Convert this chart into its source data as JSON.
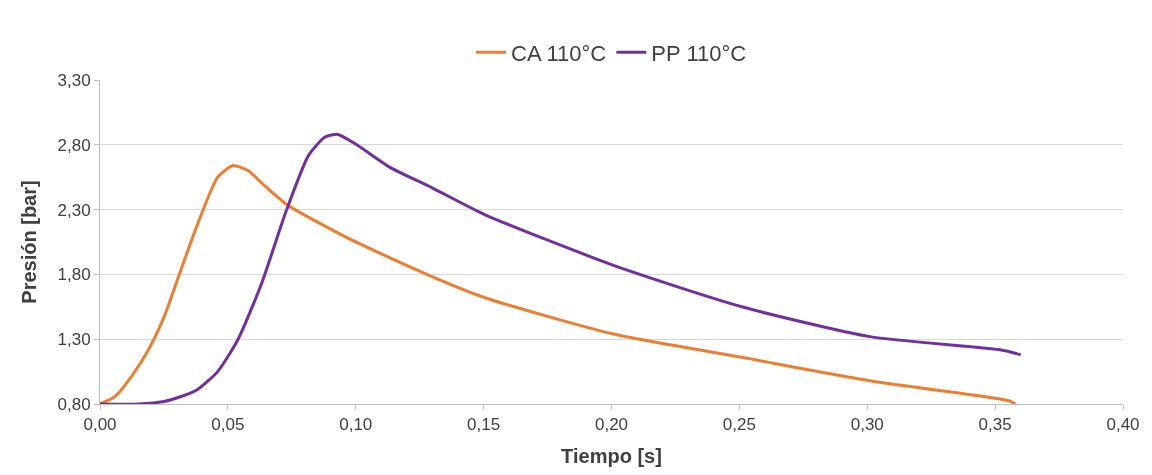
{
  "chart_data": {
    "type": "line",
    "xlabel": "Tiempo [s]",
    "ylabel": "Presión [bar]",
    "xlim": [
      0,
      0.4
    ],
    "ylim": [
      0.8,
      3.3
    ],
    "xticks": [
      {
        "value": 0,
        "label": "0,00"
      },
      {
        "value": 0.05,
        "label": "0,05"
      },
      {
        "value": 0.1,
        "label": "0,10"
      },
      {
        "value": 0.15,
        "label": "0,15"
      },
      {
        "value": 0.2,
        "label": "0,20"
      },
      {
        "value": 0.25,
        "label": "0,25"
      },
      {
        "value": 0.3,
        "label": "0,30"
      },
      {
        "value": 0.35,
        "label": "0,35"
      },
      {
        "value": 0.4,
        "label": "0,40"
      }
    ],
    "yticks": [
      {
        "value": 0.8,
        "label": "0,80"
      },
      {
        "value": 1.3,
        "label": "1,30"
      },
      {
        "value": 1.8,
        "label": "1,80"
      },
      {
        "value": 2.3,
        "label": "2,30"
      },
      {
        "value": 2.8,
        "label": "2,80"
      },
      {
        "value": 3.3,
        "label": "3,30"
      }
    ],
    "grid": "y",
    "legend": "top",
    "marker": "none",
    "line_style": "solid",
    "series": [
      {
        "name": "CA 110°C",
        "color": "#ed7d31",
        "x": [
          0,
          0.006,
          0.0126,
          0.019,
          0.025,
          0.031,
          0.038,
          0.046,
          0.052,
          0.058,
          0.063,
          0.073,
          0.096,
          0.1255,
          0.1506,
          0.2008,
          0.251,
          0.301,
          0.3515,
          0.356,
          0.358
        ],
        "values": [
          0.8,
          0.86,
          1.02,
          1.22,
          1.47,
          1.8,
          2.18,
          2.55,
          2.64,
          2.6,
          2.51,
          2.34,
          2.09,
          1.82,
          1.62,
          1.34,
          1.16,
          0.98,
          0.84,
          0.82,
          0.8
        ]
      },
      {
        "name": "PP 110°C",
        "color": "#7030a0",
        "x": [
          0,
          0.015,
          0.025,
          0.032,
          0.038,
          0.046,
          0.054,
          0.063,
          0.073,
          0.0816,
          0.088,
          0.093,
          0.1004,
          0.113,
          0.1297,
          0.1506,
          0.2008,
          0.251,
          0.301,
          0.3515,
          0.36
        ],
        "values": [
          0.8,
          0.8,
          0.82,
          0.86,
          0.91,
          1.05,
          1.3,
          1.72,
          2.3,
          2.72,
          2.86,
          2.88,
          2.8,
          2.63,
          2.47,
          2.26,
          1.87,
          1.55,
          1.32,
          1.22,
          1.18
        ]
      }
    ]
  }
}
